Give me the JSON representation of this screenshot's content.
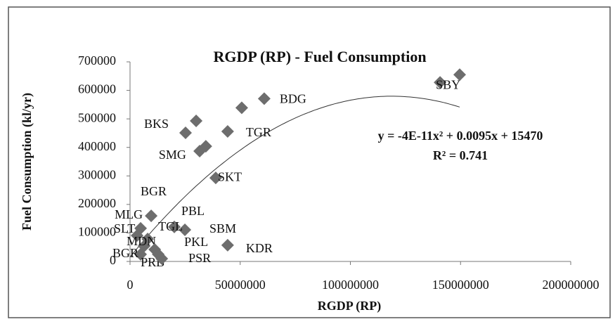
{
  "chart_data": {
    "type": "scatter",
    "title": "RGDP (RP) - Fuel Consumption",
    "xlabel": "RGDP (RP)",
    "ylabel": "Fuel Consumption (kl/yr)",
    "x": [
      140700000,
      149600000,
      60900000,
      50700000,
      44300000,
      30000000,
      25200000,
      34400000,
      31600000,
      38900000,
      9600000,
      4800000,
      20100000,
      24900000,
      3200000,
      8000000,
      6400000,
      11200000,
      44300000,
      4800000,
      12800000,
      14400000
    ],
    "values": [
      628000,
      655000,
      571000,
      539000,
      456000,
      493000,
      451000,
      404000,
      387000,
      293000,
      160000,
      116000,
      121000,
      111000,
      91000,
      79000,
      54000,
      42000,
      57000,
      25000,
      25000,
      10000
    ],
    "labels": [
      "SBY",
      null,
      "BDG",
      null,
      "TGR",
      "BKS",
      null,
      "SMG",
      null,
      "SKT",
      "MLG",
      "BGR",
      "PBL",
      "SBM",
      "SLT",
      "TGL",
      "MDN",
      "PKL",
      "KDR",
      "BGR",
      "PRB",
      "PSR"
    ],
    "color": "#6d6d6d",
    "trendline": {
      "coefficients": [
        -4e-11,
        0.0095,
        15470
      ],
      "equation": "y = -4E-11x² + 0.0095x + 15470",
      "r2": "R² = 0.741"
    },
    "xlim": [
      0,
      200000000
    ],
    "xticks": [
      0,
      50000000,
      100000000,
      150000000,
      200000000
    ],
    "ylim": [
      0,
      700000
    ],
    "yticks": [
      0,
      100000,
      200000,
      300000,
      400000,
      500000,
      600000,
      700000
    ]
  }
}
